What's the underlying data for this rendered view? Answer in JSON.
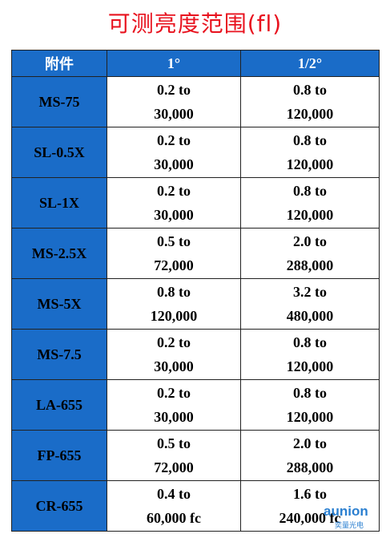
{
  "title": "可测亮度范围(fl)",
  "table": {
    "header": [
      "附件",
      "1°",
      "1/2°"
    ],
    "rows": [
      {
        "name": "MS-75",
        "cells": [
          [
            "0.2 to",
            "30,000"
          ],
          [
            "0.8 to",
            "120,000"
          ]
        ]
      },
      {
        "name": "SL-0.5X",
        "cells": [
          [
            "0.2 to",
            "30,000"
          ],
          [
            "0.8 to",
            "120,000"
          ]
        ]
      },
      {
        "name": "SL-1X",
        "cells": [
          [
            "0.2 to",
            "30,000"
          ],
          [
            "0.8 to",
            "120,000"
          ]
        ]
      },
      {
        "name": "MS-2.5X",
        "cells": [
          [
            "0.5 to",
            "72,000"
          ],
          [
            "2.0 to",
            "288,000"
          ]
        ]
      },
      {
        "name": "MS-5X",
        "cells": [
          [
            "0.8 to",
            "120,000"
          ],
          [
            "3.2 to",
            "480,000"
          ]
        ]
      },
      {
        "name": "MS-7.5",
        "cells": [
          [
            "0.2 to",
            "30,000"
          ],
          [
            "0.8 to",
            "120,000"
          ]
        ]
      },
      {
        "name": "LA-655",
        "cells": [
          [
            "0.2 to",
            "30,000"
          ],
          [
            "0.8 to",
            "120,000"
          ]
        ]
      },
      {
        "name": "FP-655",
        "cells": [
          [
            "0.5 to",
            "72,000"
          ],
          [
            "2.0 to",
            "288,000"
          ]
        ]
      },
      {
        "name": "CR-655",
        "cells": [
          [
            "0.4 to",
            "60,000 fc"
          ],
          [
            "1.6 to",
            "240,000 fc"
          ]
        ]
      }
    ]
  },
  "watermark": {
    "brand": "aunion",
    "sub": "奕量光电"
  }
}
